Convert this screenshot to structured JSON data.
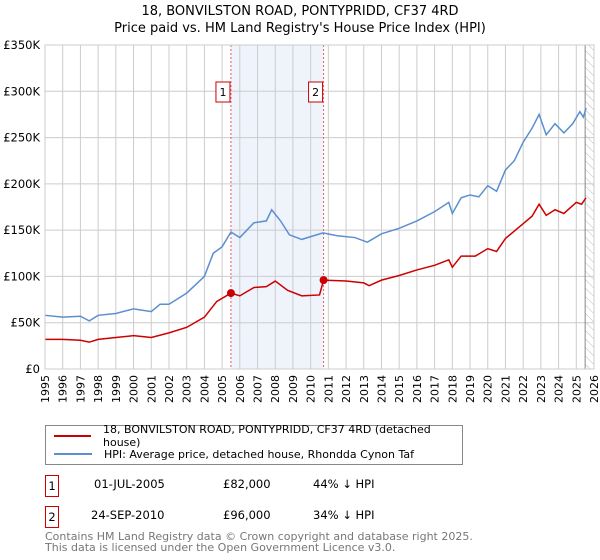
{
  "chart_data": {
    "type": "line",
    "title": "18, BONVILSTON ROAD, PONTYPRIDD, CF37 4RD",
    "subtitle": "Price paid vs. HM Land Registry's House Price Index (HPI)",
    "xlim": [
      1995,
      2026
    ],
    "ylim": [
      0,
      350000
    ],
    "yticks": [
      0,
      50000,
      100000,
      150000,
      200000,
      250000,
      300000,
      350000
    ],
    "ytick_labels": [
      "£0",
      "£50K",
      "£100K",
      "£150K",
      "£200K",
      "£250K",
      "£300K",
      "£350K"
    ],
    "xticks": [
      "1995",
      "1996",
      "1997",
      "1998",
      "1999",
      "2000",
      "2001",
      "2002",
      "2003",
      "2004",
      "2005",
      "2006",
      "2007",
      "2008",
      "2009",
      "2010",
      "2011",
      "2012",
      "2013",
      "2014",
      "2015",
      "2016",
      "2017",
      "2018",
      "2019",
      "2020",
      "2021",
      "2022",
      "2023",
      "2024",
      "2025",
      "2026"
    ],
    "grid": true,
    "shaded_range": [
      2005.5,
      2010.73
    ],
    "hatched_from": 2025.5,
    "series": [
      {
        "name": "18, BONVILSTON ROAD, PONTYPRIDD, CF37 4RD (detached house)",
        "color": "#cc0000",
        "x": [
          1995,
          1996,
          1997,
          1997.5,
          1998,
          1999,
          2000,
          2001,
          2002,
          2003,
          2004,
          2004.7,
          2005.5,
          2006,
          2006.8,
          2007.5,
          2008,
          2008.7,
          2009.5,
          2010.5,
          2010.73,
          2012,
          2013,
          2013.3,
          2014,
          2015,
          2016,
          2017,
          2017.8,
          2018,
          2018.5,
          2019.3,
          2020,
          2020.5,
          2021,
          2022,
          2022.5,
          2022.9,
          2023.3,
          2023.8,
          2024.3,
          2025,
          2025.3,
          2025.55
        ],
        "y": [
          32000,
          32000,
          31000,
          29000,
          32000,
          34000,
          36000,
          34000,
          39000,
          45000,
          56000,
          73000,
          82000,
          79000,
          88000,
          89000,
          95000,
          85000,
          79000,
          80000,
          96000,
          95000,
          93000,
          90000,
          96000,
          101000,
          107000,
          112000,
          118000,
          110000,
          122000,
          122000,
          130000,
          127000,
          141000,
          157000,
          165000,
          178000,
          166000,
          172000,
          168000,
          180000,
          178000,
          185000
        ]
      },
      {
        "name": "HPI: Average price, detached house, Rhondda Cynon Taf",
        "color": "#5b8fd0",
        "x": [
          1995,
          1996,
          1997,
          1997.5,
          1998,
          1999,
          2000,
          2001,
          2001.5,
          2002,
          2003,
          2004,
          2004.5,
          2005,
          2005.5,
          2006,
          2006.8,
          2007.5,
          2007.8,
          2008.3,
          2008.8,
          2009.5,
          2010,
          2010.7,
          2011.5,
          2012.5,
          2013.2,
          2014,
          2015,
          2016,
          2017,
          2017.8,
          2018,
          2018.5,
          2019,
          2019.5,
          2020,
          2020.5,
          2021,
          2021.5,
          2022,
          2022.5,
          2022.9,
          2023.3,
          2023.8,
          2024.3,
          2024.8,
          2025.2,
          2025.4,
          2025.55
        ],
        "y": [
          58000,
          56000,
          57000,
          52000,
          58000,
          60000,
          65000,
          62000,
          70000,
          70000,
          82000,
          100000,
          125000,
          132000,
          148000,
          142000,
          158000,
          160000,
          172000,
          160000,
          145000,
          140000,
          143000,
          147000,
          144000,
          142000,
          137000,
          146000,
          152000,
          160000,
          170000,
          180000,
          168000,
          185000,
          188000,
          186000,
          198000,
          192000,
          215000,
          225000,
          245000,
          260000,
          275000,
          253000,
          265000,
          255000,
          265000,
          278000,
          272000,
          282000
        ]
      }
    ],
    "annotations": [
      {
        "label": "1",
        "x": 2005.5,
        "y": 82000
      },
      {
        "label": "2",
        "x": 2010.73,
        "y": 96000
      }
    ]
  },
  "legend": {
    "items": [
      {
        "label": "18, BONVILSTON ROAD, PONTYPRIDD, CF37 4RD (detached house)",
        "color": "#cc0000"
      },
      {
        "label": "HPI: Average price, detached house, Rhondda Cynon Taf",
        "color": "#5b8fd0"
      }
    ]
  },
  "transactions": [
    {
      "num": "1",
      "date": "01-JUL-2005",
      "price": "£82,000",
      "hpi": "44% ↓ HPI"
    },
    {
      "num": "2",
      "date": "24-SEP-2010",
      "price": "£96,000",
      "hpi": "34% ↓ HPI"
    }
  ],
  "footer": {
    "line1": "Contains HM Land Registry data © Crown copyright and database right 2025.",
    "line2": "This data is licensed under the Open Government Licence v3.0."
  }
}
